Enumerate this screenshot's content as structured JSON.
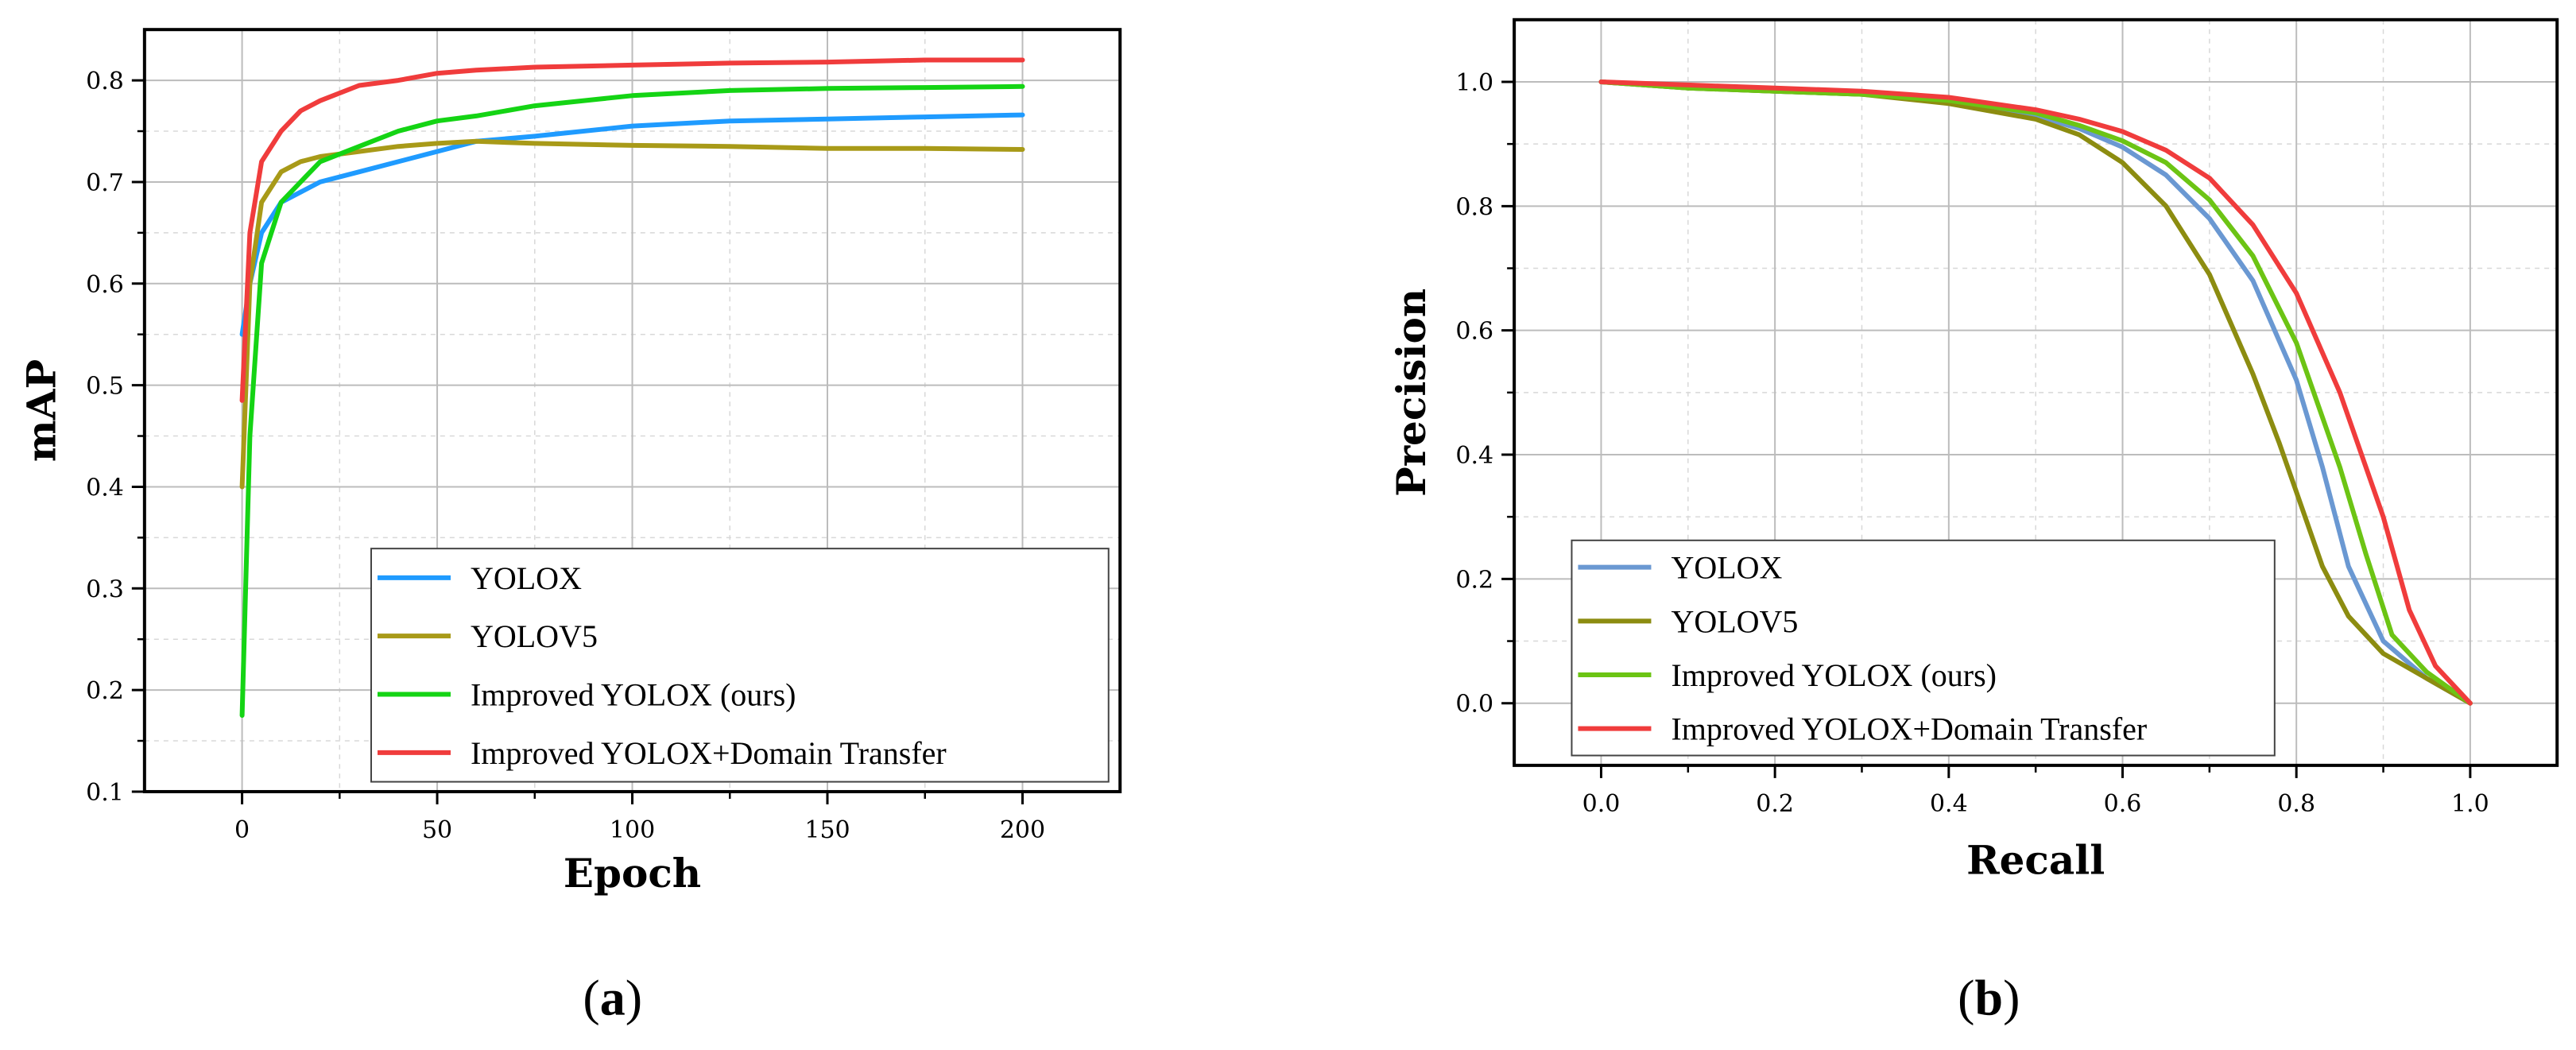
{
  "colors": {
    "a_yolox": "#1f9bff",
    "a_yolov5": "#a89a18",
    "a_improved": "#14d414",
    "a_domain": "#f03c3c",
    "b_yolox": "#6a98d2",
    "b_yolov5": "#8c8c10",
    "b_improved": "#6cc414",
    "b_domain": "#f03c3c"
  },
  "chart_data": [
    {
      "panel": "a",
      "type": "line",
      "panel_label": "(a)",
      "panel_label_letter": "a",
      "xlabel": "Epoch",
      "ylabel": "mAP",
      "xlim": [
        -25,
        225
      ],
      "ylim": [
        0.1,
        0.85
      ],
      "xticks": [
        0,
        50,
        100,
        150,
        200
      ],
      "xtick_labels": [
        "0",
        "50",
        "100",
        "150",
        "200"
      ],
      "yticks": [
        0.1,
        0.2,
        0.3,
        0.4,
        0.5,
        0.6,
        0.7,
        0.8
      ],
      "ytick_labels": [
        "0.1",
        "0.2",
        "0.3",
        "0.4",
        "0.5",
        "0.6",
        "0.7",
        "0.8"
      ],
      "grid": true,
      "legend_position": "bottom-right",
      "series": [
        {
          "name": "YOLOX",
          "color_key": "a_yolox",
          "x": [
            0,
            2,
            5,
            10,
            15,
            20,
            30,
            40,
            50,
            60,
            75,
            100,
            125,
            150,
            175,
            200
          ],
          "y": [
            0.55,
            0.6,
            0.65,
            0.68,
            0.69,
            0.7,
            0.71,
            0.72,
            0.73,
            0.74,
            0.745,
            0.755,
            0.76,
            0.762,
            0.764,
            0.766
          ]
        },
        {
          "name": "YOLOV5",
          "color_key": "a_yolov5",
          "x": [
            0,
            2,
            5,
            10,
            15,
            20,
            30,
            40,
            50,
            60,
            75,
            100,
            125,
            150,
            175,
            200
          ],
          "y": [
            0.4,
            0.6,
            0.68,
            0.71,
            0.72,
            0.725,
            0.73,
            0.735,
            0.738,
            0.74,
            0.738,
            0.736,
            0.735,
            0.733,
            0.733,
            0.732
          ]
        },
        {
          "name": "Improved YOLOX (ours)",
          "color_key": "a_improved",
          "x": [
            0,
            2,
            5,
            10,
            15,
            20,
            30,
            40,
            50,
            60,
            75,
            100,
            125,
            150,
            175,
            200
          ],
          "y": [
            0.175,
            0.45,
            0.62,
            0.68,
            0.7,
            0.72,
            0.735,
            0.75,
            0.76,
            0.765,
            0.775,
            0.785,
            0.79,
            0.792,
            0.793,
            0.794
          ]
        },
        {
          "name": "Improved YOLOX+Domain Transfer",
          "color_key": "a_domain",
          "x": [
            0,
            2,
            5,
            10,
            15,
            20,
            30,
            40,
            50,
            60,
            75,
            100,
            125,
            150,
            175,
            200
          ],
          "y": [
            0.485,
            0.65,
            0.72,
            0.75,
            0.77,
            0.78,
            0.795,
            0.8,
            0.807,
            0.81,
            0.813,
            0.815,
            0.817,
            0.818,
            0.82,
            0.82
          ]
        }
      ]
    },
    {
      "panel": "b",
      "type": "line",
      "panel_label": "(b)",
      "panel_label_letter": "b",
      "xlabel": "Recall",
      "ylabel": "Precision",
      "xlim": [
        -0.1,
        1.1
      ],
      "ylim": [
        -0.1,
        1.1
      ],
      "xticks": [
        0.0,
        0.2,
        0.4,
        0.6,
        0.8,
        1.0
      ],
      "xtick_labels": [
        "0.0",
        "0.2",
        "0.4",
        "0.6",
        "0.8",
        "1.0"
      ],
      "yticks": [
        0.0,
        0.2,
        0.4,
        0.6,
        0.8,
        1.0
      ],
      "ytick_labels": [
        "0.0",
        "0.2",
        "0.4",
        "0.6",
        "0.8",
        "1.0"
      ],
      "grid": true,
      "legend_position": "bottom-left",
      "series": [
        {
          "name": "YOLOX",
          "color_key": "b_yolox",
          "x": [
            0.0,
            0.1,
            0.2,
            0.3,
            0.4,
            0.5,
            0.55,
            0.6,
            0.65,
            0.7,
            0.75,
            0.8,
            0.83,
            0.86,
            0.9,
            0.95,
            1.0
          ],
          "y": [
            1.0,
            0.99,
            0.985,
            0.98,
            0.97,
            0.945,
            0.925,
            0.895,
            0.85,
            0.78,
            0.68,
            0.52,
            0.38,
            0.22,
            0.1,
            0.04,
            0.0
          ]
        },
        {
          "name": "YOLOV5",
          "color_key": "b_yolov5",
          "x": [
            0.0,
            0.1,
            0.2,
            0.3,
            0.4,
            0.5,
            0.55,
            0.6,
            0.65,
            0.7,
            0.75,
            0.78,
            0.8,
            0.83,
            0.86,
            0.9,
            0.95,
            1.0
          ],
          "y": [
            1.0,
            0.99,
            0.985,
            0.98,
            0.965,
            0.94,
            0.915,
            0.87,
            0.8,
            0.69,
            0.53,
            0.42,
            0.34,
            0.22,
            0.14,
            0.08,
            0.04,
            0.0
          ]
        },
        {
          "name": "Improved YOLOX (ours)",
          "color_key": "b_improved",
          "x": [
            0.0,
            0.1,
            0.2,
            0.3,
            0.4,
            0.5,
            0.55,
            0.6,
            0.65,
            0.7,
            0.75,
            0.8,
            0.85,
            0.88,
            0.91,
            0.95,
            1.0
          ],
          "y": [
            1.0,
            0.99,
            0.985,
            0.98,
            0.97,
            0.95,
            0.93,
            0.905,
            0.87,
            0.81,
            0.72,
            0.58,
            0.38,
            0.24,
            0.11,
            0.05,
            0.0
          ]
        },
        {
          "name": "Improved YOLOX+Domain Transfer",
          "color_key": "b_domain",
          "x": [
            0.0,
            0.1,
            0.2,
            0.3,
            0.4,
            0.5,
            0.55,
            0.6,
            0.65,
            0.7,
            0.75,
            0.8,
            0.85,
            0.9,
            0.93,
            0.96,
            1.0
          ],
          "y": [
            1.0,
            0.995,
            0.99,
            0.985,
            0.975,
            0.955,
            0.94,
            0.92,
            0.89,
            0.845,
            0.77,
            0.66,
            0.5,
            0.3,
            0.15,
            0.06,
            0.0
          ]
        }
      ]
    }
  ]
}
